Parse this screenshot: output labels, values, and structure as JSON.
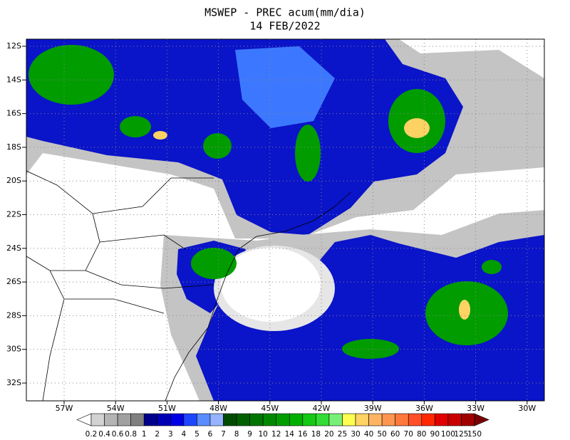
{
  "map": {
    "title": [
      "MSWEP - PREC acum(mm/dia)",
      "14 FEB/2022"
    ],
    "lat_labels": [
      "12S",
      "14S",
      "16S",
      "18S",
      "20S",
      "22S",
      "24S",
      "26S",
      "28S",
      "30S",
      "32S"
    ],
    "lon_labels": [
      "57W",
      "54W",
      "51W",
      "48W",
      "45W",
      "42W",
      "39W",
      "36W",
      "33W",
      "30W"
    ],
    "colorbar": {
      "ticks": [
        0.2,
        0.4,
        0.6,
        0.8,
        1,
        2,
        3,
        4,
        5,
        6,
        7,
        8,
        9,
        10,
        12,
        14,
        16,
        18,
        20,
        25,
        30,
        40,
        50,
        60,
        70,
        80,
        90,
        100,
        125,
        150
      ],
      "under_color": "#ffffff",
      "colors": [
        "#d2d2d2",
        "#b4b4b4",
        "#a0a0a0",
        "#808080",
        "#00008c",
        "#0000b4",
        "#0000e6",
        "#1e46ff",
        "#5a8cff",
        "#96b4ff",
        "#004b00",
        "#006000",
        "#007400",
        "#008800",
        "#009c00",
        "#00b000",
        "#14c814",
        "#32dc32",
        "#78f078",
        "#ffff50",
        "#ffd264",
        "#ffb464",
        "#ff9650",
        "#ff783c",
        "#ff5028",
        "#ff2800",
        "#e10000",
        "#c80000",
        "#a00000"
      ],
      "over_color": "#780000"
    }
  }
}
